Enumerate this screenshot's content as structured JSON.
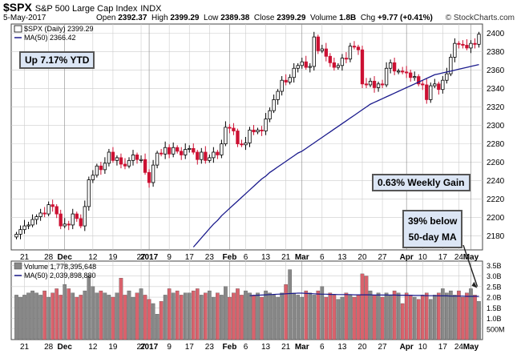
{
  "header": {
    "symbol": "$SPX",
    "name": "S&P 500 Large Cap Index",
    "exchange": "INDX",
    "date": "5-May-2017",
    "open_label": "Open",
    "open": "2392.37",
    "high_label": "High",
    "high": "2399.29",
    "low_label": "Low",
    "low": "2389.38",
    "close_label": "Close",
    "close": "2399.29",
    "volume_label": "Volume",
    "volume": "1.8B",
    "chg_label": "Chg",
    "chg": "+9.77 (+0.41%)",
    "watermark": "© StockCharts.com"
  },
  "legend": {
    "price": "$SPX (Daily) 2399.29",
    "ma": "MA(50) 2366.42",
    "volume": "Volume 1,778,395,648",
    "vol_ma": "MA(50) 2,039,898,880"
  },
  "annotations": {
    "ytd": "Up 7.17% YTD",
    "weekly": "0.63% Weekly Gain",
    "below_ma_line1": "39% below",
    "below_ma_line2": "50-day MA"
  },
  "colors": {
    "up": "#ffffff",
    "down": "#cc1133",
    "ma_line": "#1a1a8c",
    "vol_up": "#888888",
    "vol_down": "#d9626c",
    "grid": "#cccccc",
    "annot_bg": "#dce6f5"
  },
  "chart_data": [
    {
      "type": "candlestick",
      "title": "$SPX (Daily)",
      "ylim": [
        2165,
        2410
      ],
      "yticks": [
        2180,
        2200,
        2220,
        2240,
        2260,
        2280,
        2300,
        2320,
        2340,
        2360,
        2380,
        2400
      ],
      "x_labels": [
        "21",
        "28",
        "Dec",
        "12",
        "19",
        "27",
        "2017",
        "9",
        "17",
        "23",
        "Feb",
        "6",
        "13",
        "21",
        "Mar",
        "6",
        "13",
        "20",
        "27",
        "Apr",
        "10",
        "17",
        "24",
        "May"
      ],
      "x_label_bold": [
        "Dec",
        "2017",
        "Feb",
        "Mar",
        "Apr",
        "May"
      ],
      "close": [
        2182,
        2187,
        2191,
        2192,
        2198,
        2201,
        2205,
        2204,
        2214,
        2212,
        2204,
        2191,
        2193,
        2192,
        2204,
        2199,
        2191,
        2212,
        2241,
        2246,
        2256,
        2252,
        2259,
        2271,
        2262,
        2265,
        2258,
        2256,
        2262,
        2268,
        2263,
        2263,
        2249,
        2238,
        2257,
        2270,
        2269,
        2276,
        2269,
        2276,
        2272,
        2268,
        2274,
        2275,
        2271,
        2263,
        2271,
        2262,
        2265,
        2271,
        2268,
        2280,
        2298,
        2297,
        2294,
        2280,
        2279,
        2281,
        2295,
        2293,
        2295,
        2294,
        2307,
        2316,
        2328,
        2337,
        2349,
        2347,
        2352,
        2362,
        2365,
        2369,
        2363,
        2364,
        2396,
        2381,
        2383,
        2375,
        2368,
        2363,
        2365,
        2373,
        2372,
        2386,
        2385,
        2382,
        2345,
        2344,
        2348,
        2341,
        2345,
        2344,
        2362,
        2368,
        2359,
        2359,
        2358,
        2357,
        2352,
        2353,
        2345,
        2344,
        2328,
        2343,
        2345,
        2339,
        2349,
        2356,
        2374,
        2389,
        2388,
        2387,
        2384,
        2389,
        2388,
        2399
      ],
      "ma50": [
        2135,
        2140,
        2146,
        2152,
        2158,
        2163,
        2168,
        2173,
        2178,
        2183,
        2188,
        2193,
        2197,
        2202,
        2206,
        2210,
        2214,
        2218,
        2222,
        2226,
        2230,
        2234,
        2238,
        2242,
        2245,
        2249,
        2252,
        2255,
        2258,
        2261,
        2264,
        2267,
        2270,
        2272,
        2275,
        2278,
        2281,
        2284,
        2287,
        2290,
        2293,
        2296,
        2299,
        2302,
        2305,
        2308,
        2311,
        2314,
        2317,
        2320,
        2323,
        2325,
        2327,
        2329,
        2331,
        2333,
        2335,
        2337,
        2339,
        2341,
        2343,
        2345,
        2347,
        2349,
        2351,
        2353,
        2355,
        2356,
        2357,
        2358,
        2359,
        2360,
        2361,
        2362,
        2363,
        2364,
        2365,
        2366
      ]
    },
    {
      "type": "bar",
      "title": "Volume",
      "ylim": [
        0,
        3.7
      ],
      "yticks": [
        "500M",
        "1.0B",
        "1.5B",
        "2.0B",
        "2.5B",
        "3.0B",
        "3.5B"
      ],
      "ytick_values": [
        0.5,
        1.0,
        1.5,
        2.0,
        2.5,
        3.0,
        3.5
      ],
      "values": [
        2.1,
        2.0,
        2.1,
        2.2,
        2.3,
        2.2,
        2.1,
        2.3,
        2.0,
        2.2,
        2.4,
        2.1,
        2.6,
        2.4,
        2.2,
        2.0,
        2.1,
        2.3,
        3.0,
        2.5,
        2.2,
        2.3,
        2.2,
        2.1,
        2.0,
        2.2,
        2.9,
        2.1,
        2.3,
        2.0,
        2.2,
        2.4,
        2.1,
        1.9,
        1.7,
        1.2,
        1.8,
        2.1,
        2.4,
        2.2,
        2.3,
        2.1,
        2.2,
        2.2,
        2.3,
        2.4,
        2.1,
        2.2,
        2.3,
        2.0,
        2.2,
        2.1,
        2.5,
        2.0,
        2.2,
        2.4,
        2.1,
        2.3,
        2.2,
        2.1,
        2.2,
        2.0,
        2.3,
        2.2,
        2.1,
        2.0,
        2.2,
        2.6,
        3.3,
        2.2,
        2.1,
        2.0,
        2.3,
        2.2,
        2.1,
        2.3,
        2.5,
        2.0,
        2.2,
        2.1,
        1.9,
        2.0,
        2.2,
        2.1,
        2.0,
        2.1,
        3.1,
        3.0,
        2.3,
        2.1,
        2.2,
        2.0,
        2.2,
        2.1,
        2.3,
        2.2,
        1.7,
        2.2,
        2.1,
        2.0,
        1.9,
        2.1,
        2.2,
        1.9,
        2.1,
        2.2,
        2.4,
        2.2,
        2.3,
        2.1,
        2.3,
        2.0,
        2.2,
        2.4,
        2.1,
        1.8
      ],
      "ma50": [
        2.07,
        2.08,
        2.09,
        2.1,
        2.11,
        2.12,
        2.13,
        2.14,
        2.15,
        2.16,
        2.17,
        2.18,
        2.19,
        2.19,
        2.18,
        2.17,
        2.16,
        2.15,
        2.14,
        2.14,
        2.13,
        2.13,
        2.12,
        2.12,
        2.12,
        2.12,
        2.11,
        2.11,
        2.11,
        2.11,
        2.11,
        2.1,
        2.1,
        2.1,
        2.1,
        2.1,
        2.1,
        2.09,
        2.09,
        2.09,
        2.09,
        2.08,
        2.08,
        2.08,
        2.07,
        2.07,
        2.07,
        2.06,
        2.06,
        2.06,
        2.05,
        2.05,
        2.05,
        2.05,
        2.04,
        2.04,
        2.04,
        2.04
      ]
    }
  ]
}
